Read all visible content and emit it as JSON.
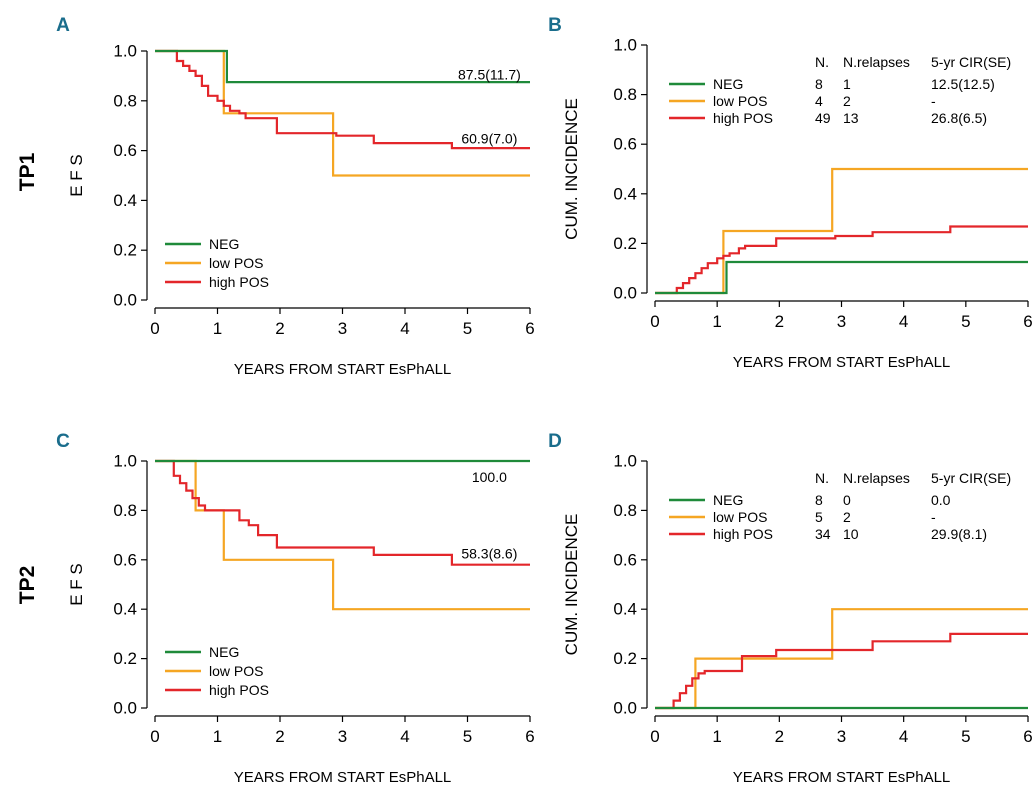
{
  "colors": {
    "NEG": "#1f8a3a",
    "low POS": "#f5a623",
    "high POS": "#e3262a",
    "panel_letter": "#1a6d8c"
  },
  "row_labels": [
    "TP1",
    "TP2"
  ],
  "chart_data": [
    {
      "id": "A",
      "letter": "A",
      "type": "line",
      "step": true,
      "ylabel": "E F S",
      "xlabel": "YEARS FROM START EsPhALL",
      "xlim": [
        0,
        6
      ],
      "ylim": [
        0,
        1
      ],
      "xticks": [
        "0",
        "1",
        "2",
        "3",
        "4",
        "5",
        "6"
      ],
      "yticks": [
        "0.0",
        "0.2",
        "0.4",
        "0.6",
        "0.8",
        "1.0"
      ],
      "legend": {
        "placement": "bottom-left",
        "entries": [
          "NEG",
          "low POS",
          "high POS"
        ]
      },
      "annotations": [
        {
          "text": "87.5(11.7)",
          "x": 5.35,
          "y": 0.905
        },
        {
          "text": "60.9(7.0)",
          "x": 5.35,
          "y": 0.648
        }
      ],
      "series": [
        {
          "name": "NEG",
          "x": [
            0,
            1.15,
            6
          ],
          "y": [
            1.0,
            0.875,
            0.875
          ]
        },
        {
          "name": "low POS",
          "x": [
            0,
            1.1,
            2.85,
            6
          ],
          "y": [
            1.0,
            0.75,
            0.5,
            0.5
          ]
        },
        {
          "name": "high POS",
          "x": [
            0,
            0.35,
            0.45,
            0.55,
            0.65,
            0.75,
            0.85,
            1.0,
            1.1,
            1.2,
            1.35,
            1.45,
            1.95,
            2.9,
            3.5,
            4.75,
            6
          ],
          "y": [
            1.0,
            0.96,
            0.94,
            0.92,
            0.9,
            0.86,
            0.82,
            0.8,
            0.78,
            0.76,
            0.75,
            0.73,
            0.67,
            0.66,
            0.63,
            0.61,
            0.61
          ]
        }
      ]
    },
    {
      "id": "B",
      "letter": "B",
      "type": "line",
      "step": true,
      "ylabel": "CUM. INCIDENCE",
      "xlabel": "YEARS FROM START EsPhALL",
      "xlim": [
        0,
        6
      ],
      "ylim": [
        0,
        1
      ],
      "xticks": [
        "0",
        "1",
        "2",
        "3",
        "4",
        "5",
        "6"
      ],
      "yticks": [
        "0.0",
        "0.2",
        "0.4",
        "0.6",
        "0.8",
        "1.0"
      ],
      "legend": {
        "placement": "top-right",
        "headers": [
          "N.",
          "N.relapses",
          "5-yr CIR(SE)"
        ],
        "entries": [
          "NEG",
          "low POS",
          "high POS"
        ],
        "rows": [
          {
            "name": "NEG",
            "n": "8",
            "relapses": "1",
            "cir": "12.5(12.5)"
          },
          {
            "name": "low POS",
            "n": "4",
            "relapses": "2",
            "cir": "-"
          },
          {
            "name": "high POS",
            "n": "49",
            "relapses": "13",
            "cir": "26.8(6.5)"
          }
        ]
      },
      "series": [
        {
          "name": "NEG",
          "x": [
            0,
            1.15,
            6
          ],
          "y": [
            0,
            0.125,
            0.125
          ]
        },
        {
          "name": "low POS",
          "x": [
            0,
            1.1,
            2.85,
            6
          ],
          "y": [
            0,
            0.25,
            0.5,
            0.5
          ]
        },
        {
          "name": "high POS",
          "x": [
            0,
            0.35,
            0.45,
            0.55,
            0.65,
            0.75,
            0.85,
            1.0,
            1.1,
            1.2,
            1.35,
            1.45,
            1.95,
            2.9,
            3.5,
            4.75,
            6
          ],
          "y": [
            0,
            0.02,
            0.04,
            0.06,
            0.08,
            0.1,
            0.12,
            0.14,
            0.15,
            0.16,
            0.18,
            0.19,
            0.22,
            0.23,
            0.245,
            0.268,
            0.268
          ]
        }
      ]
    },
    {
      "id": "C",
      "letter": "C",
      "type": "line",
      "step": true,
      "ylabel": "E F S",
      "xlabel": "YEARS FROM START EsPhALL",
      "xlim": [
        0,
        6
      ],
      "ylim": [
        0,
        1
      ],
      "xticks": [
        "0",
        "1",
        "2",
        "3",
        "4",
        "5",
        "6"
      ],
      "yticks": [
        "0.0",
        "0.2",
        "0.4",
        "0.6",
        "0.8",
        "1.0"
      ],
      "legend": {
        "placement": "bottom-left",
        "entries": [
          "NEG",
          "low POS",
          "high POS"
        ]
      },
      "annotations": [
        {
          "text": "100.0",
          "x": 5.35,
          "y": 0.935
        },
        {
          "text": "58.3(8.6)",
          "x": 5.35,
          "y": 0.625
        }
      ],
      "series": [
        {
          "name": "NEG",
          "x": [
            0,
            6
          ],
          "y": [
            1.0,
            1.0
          ]
        },
        {
          "name": "low POS",
          "x": [
            0,
            0.65,
            1.1,
            2.85,
            6
          ],
          "y": [
            1.0,
            0.8,
            0.6,
            0.4,
            0.4
          ]
        },
        {
          "name": "high POS",
          "x": [
            0,
            0.3,
            0.4,
            0.5,
            0.6,
            0.7,
            0.8,
            1.35,
            1.5,
            1.65,
            1.95,
            3.5,
            4.75,
            6
          ],
          "y": [
            1.0,
            0.94,
            0.91,
            0.88,
            0.85,
            0.82,
            0.8,
            0.76,
            0.74,
            0.7,
            0.65,
            0.62,
            0.58,
            0.58
          ]
        }
      ]
    },
    {
      "id": "D",
      "letter": "D",
      "type": "line",
      "step": true,
      "ylabel": "CUM. INCIDENCE",
      "xlabel": "YEARS FROM START EsPhALL",
      "xlim": [
        0,
        6
      ],
      "ylim": [
        0,
        1
      ],
      "xticks": [
        "0",
        "1",
        "2",
        "3",
        "4",
        "5",
        "6"
      ],
      "yticks": [
        "0.0",
        "0.2",
        "0.4",
        "0.6",
        "0.8",
        "1.0"
      ],
      "legend": {
        "placement": "top-right",
        "headers": [
          "N.",
          "N.relapses",
          "5-yr CIR(SE)"
        ],
        "entries": [
          "NEG",
          "low POS",
          "high POS"
        ],
        "rows": [
          {
            "name": "NEG",
            "n": "8",
            "relapses": "0",
            "cir": "0.0"
          },
          {
            "name": "low POS",
            "n": "5",
            "relapses": "2",
            "cir": "-"
          },
          {
            "name": "high POS",
            "n": "34",
            "relapses": "10",
            "cir": "29.9(8.1)"
          }
        ]
      },
      "series": [
        {
          "name": "NEG",
          "x": [
            0,
            6
          ],
          "y": [
            0,
            0
          ]
        },
        {
          "name": "low POS",
          "x": [
            0,
            0.65,
            1.4,
            2.85,
            6
          ],
          "y": [
            0,
            0.2,
            0.2,
            0.4,
            0.4
          ]
        },
        {
          "name": "high POS",
          "x": [
            0,
            0.3,
            0.4,
            0.5,
            0.6,
            0.7,
            0.8,
            1.4,
            1.95,
            3.5,
            4.75,
            6
          ],
          "y": [
            0,
            0.03,
            0.06,
            0.09,
            0.12,
            0.14,
            0.15,
            0.21,
            0.235,
            0.27,
            0.3,
            0.3
          ]
        }
      ]
    }
  ]
}
